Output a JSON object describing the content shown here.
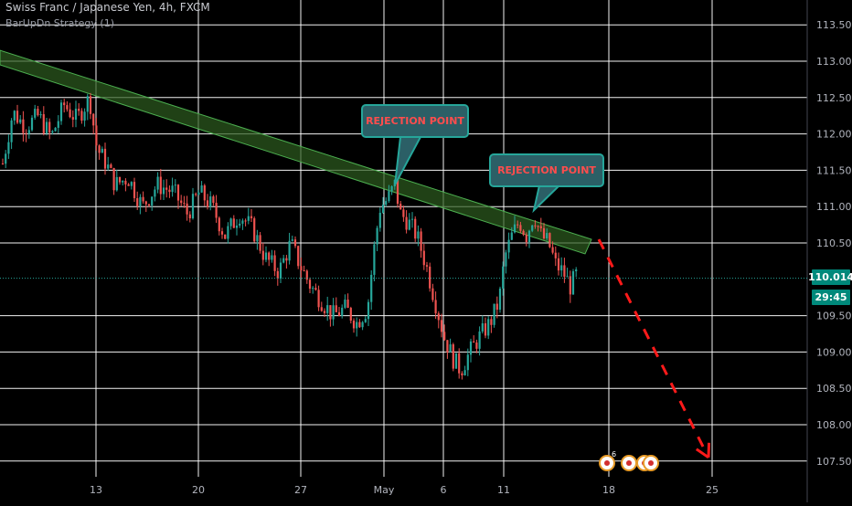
{
  "header": {
    "symbol_title": "Swiss Franc / Japanese Yen, 4h, FXCM",
    "strategy_label": "BarUpDn Strategy (1)"
  },
  "price_scale": {
    "labels": [
      "113.500",
      "113.000",
      "112.500",
      "112.000",
      "111.500",
      "111.000",
      "110.500",
      "109.500",
      "109.000",
      "108.500",
      "108.000",
      "107.500"
    ],
    "current_price": "110.014",
    "countdown": "29:45"
  },
  "time_axis": {
    "labels": [
      "13",
      "20",
      "27",
      "May",
      "6",
      "11",
      "18",
      "25"
    ]
  },
  "annotations": {
    "callout_1": "REJECTION POINT",
    "callout_2": "REJECTION POINT"
  },
  "event_markers": [
    "6"
  ],
  "colors": {
    "background": "#000000",
    "grid": "#ffffff",
    "up_candle": "#26a69a",
    "down_candle": "#ef5350",
    "channel_fill": "#2e5d1f",
    "channel_border": "#4caf50",
    "current_price_line": "#26a69a",
    "forecast_arrow": "#ff1a1a",
    "callout_fill": "#2b5f66",
    "callout_border": "#26a69a",
    "callout_text": "#ff4d4d"
  },
  "chart_data": {
    "type": "candlestick",
    "interval": "4h",
    "ylim": [
      107.4,
      113.7
    ],
    "price_path": [
      [
        0,
        111.4
      ],
      [
        14,
        112.3
      ],
      [
        28,
        112.1
      ],
      [
        42,
        112.25
      ],
      [
        56,
        111.95
      ],
      [
        70,
        112.4
      ],
      [
        84,
        112.2
      ],
      [
        98,
        112.5
      ],
      [
        106,
        111.8
      ],
      [
        116,
        111.6
      ],
      [
        126,
        111.3
      ],
      [
        140,
        111.4
      ],
      [
        156,
        111.0
      ],
      [
        172,
        111.3
      ],
      [
        190,
        111.2
      ],
      [
        205,
        110.9
      ],
      [
        218,
        111.2
      ],
      [
        232,
        111.0
      ],
      [
        246,
        110.6
      ],
      [
        262,
        110.9
      ],
      [
        276,
        110.7
      ],
      [
        290,
        110.3
      ],
      [
        305,
        110.1
      ],
      [
        318,
        110.5
      ],
      [
        328,
        110.2
      ],
      [
        340,
        109.9
      ],
      [
        352,
        109.7
      ],
      [
        364,
        109.5
      ],
      [
        378,
        109.6
      ],
      [
        390,
        109.4
      ],
      [
        402,
        109.6
      ],
      [
        410,
        110.5
      ],
      [
        416,
        111.0
      ],
      [
        424,
        111.1
      ],
      [
        432,
        111.3
      ],
      [
        438,
        110.9
      ],
      [
        446,
        110.8
      ],
      [
        456,
        110.6
      ],
      [
        466,
        110.2
      ],
      [
        476,
        109.7
      ],
      [
        486,
        109.2
      ],
      [
        496,
        108.9
      ],
      [
        504,
        108.75
      ],
      [
        514,
        109.0
      ],
      [
        524,
        109.2
      ],
      [
        536,
        109.4
      ],
      [
        546,
        109.7
      ],
      [
        552,
        110.3
      ],
      [
        560,
        110.6
      ],
      [
        568,
        110.8
      ],
      [
        576,
        110.6
      ],
      [
        584,
        110.9
      ],
      [
        592,
        110.6
      ],
      [
        600,
        110.5
      ],
      [
        608,
        110.2
      ],
      [
        616,
        110.1
      ],
      [
        624,
        109.9
      ],
      [
        632,
        110.1
      ]
    ],
    "channel": {
      "upper_start": [
        0,
        113.15
      ],
      "upper_end": [
        647,
        110.55
      ],
      "lower_start": [
        0,
        112.95
      ],
      "lower_end": [
        640,
        110.35
      ]
    },
    "forecast_arrow": {
      "from": [
        655,
        110.55
      ],
      "to": [
        775,
        107.55
      ]
    },
    "rejection_points": [
      [
        432,
        111.3
      ],
      [
        584,
        110.95
      ]
    ],
    "current_price": 110.014
  }
}
